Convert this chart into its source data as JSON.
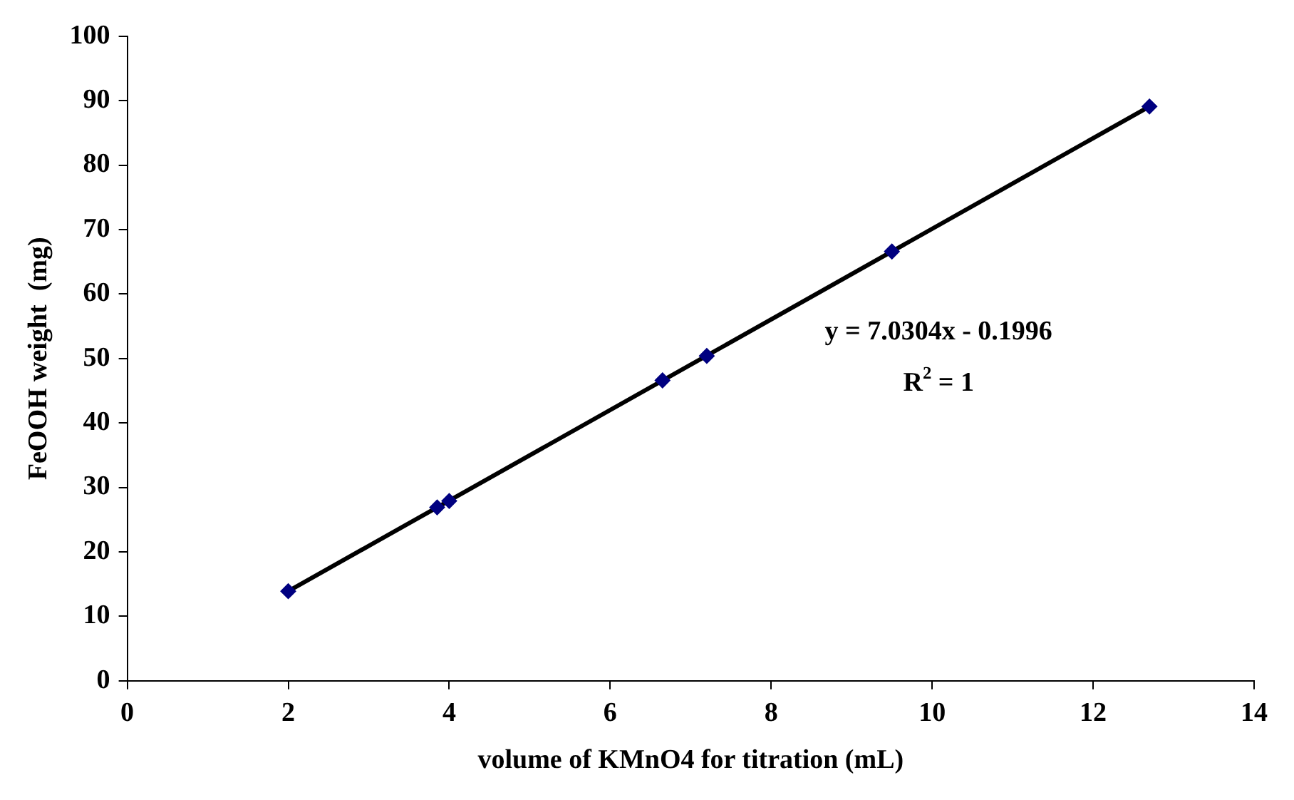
{
  "chart_data": {
    "type": "scatter",
    "xlabel": "volume of KMnO4 for titration (mL)",
    "ylabel": "FeOOH weight  (mg)",
    "series": [
      {
        "color": "#000080",
        "marker": "diamond",
        "x": [
          2,
          3.85,
          4,
          6.65,
          7.2,
          9.5,
          12.7
        ],
        "values": [
          13.9,
          26.9,
          27.9,
          46.6,
          50.4,
          66.6,
          89.1
        ]
      },
      {
        "type": "line",
        "color": "#000000",
        "marker": "none",
        "x": [
          2,
          12.7
        ],
        "values": [
          13.9,
          89.1
        ]
      }
    ],
    "xlim": [
      0,
      14
    ],
    "xticks": [
      0,
      2,
      4,
      6,
      8,
      10,
      12,
      14
    ],
    "ylim": [
      0,
      100
    ],
    "yticks": [
      0,
      10,
      20,
      30,
      40,
      50,
      60,
      70,
      80,
      90,
      100
    ],
    "annotations": [
      "y = 7.0304x - 0.1996",
      "R$^{2}$ = 1"
    ],
    "grid": false,
    "legend": false
  }
}
